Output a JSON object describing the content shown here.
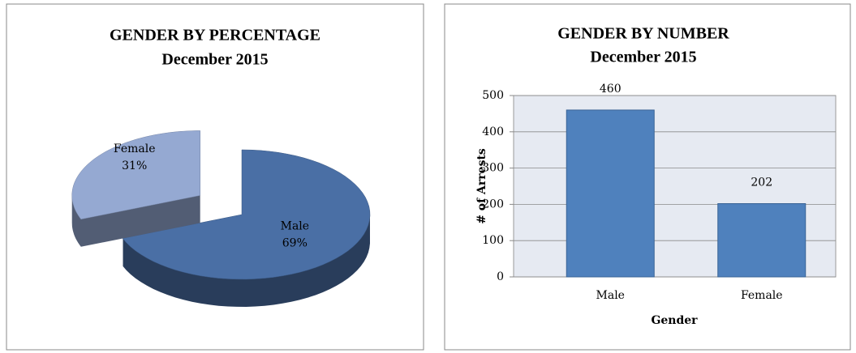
{
  "chart_data": [
    {
      "type": "pie",
      "title": "GENDER BY PERCENTAGE",
      "subtitle": "December 2015",
      "categories": [
        "Male",
        "Female"
      ],
      "values": [
        69,
        31
      ],
      "value_labels": [
        "69%",
        "31%"
      ],
      "colors": [
        "#4a6fa5",
        "#95a9d2"
      ]
    },
    {
      "type": "bar",
      "title": "GENDER BY NUMBER",
      "subtitle": "December 2015",
      "categories": [
        "Male",
        "Female"
      ],
      "values": [
        460,
        202
      ],
      "value_labels": [
        "460",
        "202"
      ],
      "color": "#4f81bd",
      "xlabel": "Gender",
      "ylabel": "# of Arrests",
      "ylim": [
        0,
        500
      ],
      "yticks": [
        0,
        100,
        200,
        300,
        400,
        500
      ],
      "grid": true
    }
  ]
}
